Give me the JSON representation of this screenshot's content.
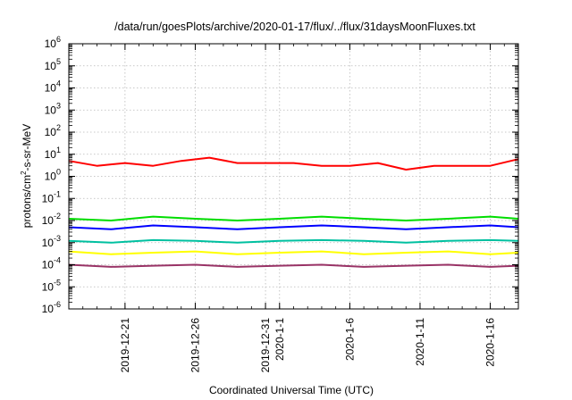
{
  "chart_data": {
    "type": "line",
    "title": "/data/run/goesPlots/archive/2020-01-17/flux/../flux/31daysMoonFluxes.txt",
    "xlabel": "Coordinated Universal Time (UTC)",
    "ylabel": "protons/cm²-s-sr-MeV",
    "ylabel_parts": {
      "pre": "protons/cm",
      "sup": "2",
      "post": "-s-sr-MeV"
    },
    "y_scale": "log",
    "ylim": [
      1e-06,
      1000000.0
    ],
    "y_ticks": [
      {
        "value": 1e-06,
        "base": "10",
        "exp": "-6"
      },
      {
        "value": 1e-05,
        "base": "10",
        "exp": "-5"
      },
      {
        "value": 0.0001,
        "base": "10",
        "exp": "-4"
      },
      {
        "value": 0.001,
        "base": "10",
        "exp": "-3"
      },
      {
        "value": 0.01,
        "base": "10",
        "exp": "-2"
      },
      {
        "value": 0.1,
        "base": "10",
        "exp": "-1"
      },
      {
        "value": 1,
        "base": "10",
        "exp": "0"
      },
      {
        "value": 10,
        "base": "10",
        "exp": "1"
      },
      {
        "value": 100,
        "base": "10",
        "exp": "2"
      },
      {
        "value": 1000,
        "base": "10",
        "exp": "3"
      },
      {
        "value": 10000,
        "base": "10",
        "exp": "4"
      },
      {
        "value": 100000,
        "base": "10",
        "exp": "5"
      },
      {
        "value": 1000000,
        "base": "10",
        "exp": "6"
      }
    ],
    "xlim": [
      "2019-12-17",
      "2020-01-18"
    ],
    "x_ticks": [
      {
        "date": "2019-12-21",
        "label": "2019-12-21"
      },
      {
        "date": "2019-12-26",
        "label": "2019-12-26"
      },
      {
        "date": "2019-12-31",
        "label": "2019-12-31"
      },
      {
        "date": "2020-01-01",
        "label": "2020-1-1"
      },
      {
        "date": "2020-01-06",
        "label": "2020-1-6"
      },
      {
        "date": "2020-01-11",
        "label": "2020-1-11"
      },
      {
        "date": "2020-01-16",
        "label": "2020-1-16"
      }
    ],
    "grid": true,
    "legend": "none",
    "series": [
      {
        "color": "#ff0000",
        "x": [
          "2019-12-17",
          "2019-12-19",
          "2019-12-21",
          "2019-12-23",
          "2019-12-25",
          "2019-12-27",
          "2019-12-29",
          "2019-12-31",
          "2020-01-02",
          "2020-01-04",
          "2020-01-06",
          "2020-01-08",
          "2020-01-10",
          "2020-01-12",
          "2020-01-14",
          "2020-01-16",
          "2020-01-18"
        ],
        "y": [
          5,
          3,
          4,
          3,
          5,
          7,
          4,
          4,
          4,
          3,
          3,
          4,
          2,
          3,
          3,
          3,
          6
        ]
      },
      {
        "color": "#00dd00",
        "x": [
          "2019-12-17",
          "2019-12-20",
          "2019-12-23",
          "2019-12-26",
          "2019-12-29",
          "2020-01-01",
          "2020-01-04",
          "2020-01-07",
          "2020-01-10",
          "2020-01-13",
          "2020-01-16",
          "2020-01-18"
        ],
        "y": [
          0.012,
          0.01,
          0.015,
          0.012,
          0.01,
          0.012,
          0.015,
          0.012,
          0.01,
          0.012,
          0.015,
          0.012
        ]
      },
      {
        "color": "#0000ff",
        "x": [
          "2019-12-17",
          "2019-12-20",
          "2019-12-23",
          "2019-12-26",
          "2019-12-29",
          "2020-01-01",
          "2020-01-04",
          "2020-01-07",
          "2020-01-10",
          "2020-01-13",
          "2020-01-16",
          "2020-01-18"
        ],
        "y": [
          0.005,
          0.004,
          0.006,
          0.005,
          0.004,
          0.005,
          0.006,
          0.005,
          0.004,
          0.005,
          0.006,
          0.005
        ]
      },
      {
        "color": "#00c0a0",
        "x": [
          "2019-12-17",
          "2019-12-20",
          "2019-12-23",
          "2019-12-26",
          "2019-12-29",
          "2020-01-01",
          "2020-01-04",
          "2020-01-07",
          "2020-01-10",
          "2020-01-13",
          "2020-01-16",
          "2020-01-18"
        ],
        "y": [
          0.0012,
          0.001,
          0.0013,
          0.0012,
          0.001,
          0.0012,
          0.0013,
          0.0012,
          0.001,
          0.0012,
          0.0013,
          0.0012
        ]
      },
      {
        "color": "#ffff00",
        "x": [
          "2019-12-17",
          "2019-12-20",
          "2019-12-23",
          "2019-12-26",
          "2019-12-29",
          "2020-01-01",
          "2020-01-04",
          "2020-01-07",
          "2020-01-10",
          "2020-01-13",
          "2020-01-16",
          "2020-01-18"
        ],
        "y": [
          0.0004,
          0.0003,
          0.00035,
          0.0004,
          0.0003,
          0.00035,
          0.0004,
          0.0003,
          0.00035,
          0.0004,
          0.0003,
          0.00035
        ]
      },
      {
        "color": "#993366",
        "x": [
          "2019-12-17",
          "2019-12-20",
          "2019-12-23",
          "2019-12-26",
          "2019-12-29",
          "2020-01-01",
          "2020-01-04",
          "2020-01-07",
          "2020-01-10",
          "2020-01-13",
          "2020-01-16",
          "2020-01-18"
        ],
        "y": [
          0.0001,
          8e-05,
          9e-05,
          0.0001,
          8e-05,
          9e-05,
          0.0001,
          8e-05,
          9e-05,
          0.0001,
          8e-05,
          9e-05
        ]
      }
    ]
  }
}
